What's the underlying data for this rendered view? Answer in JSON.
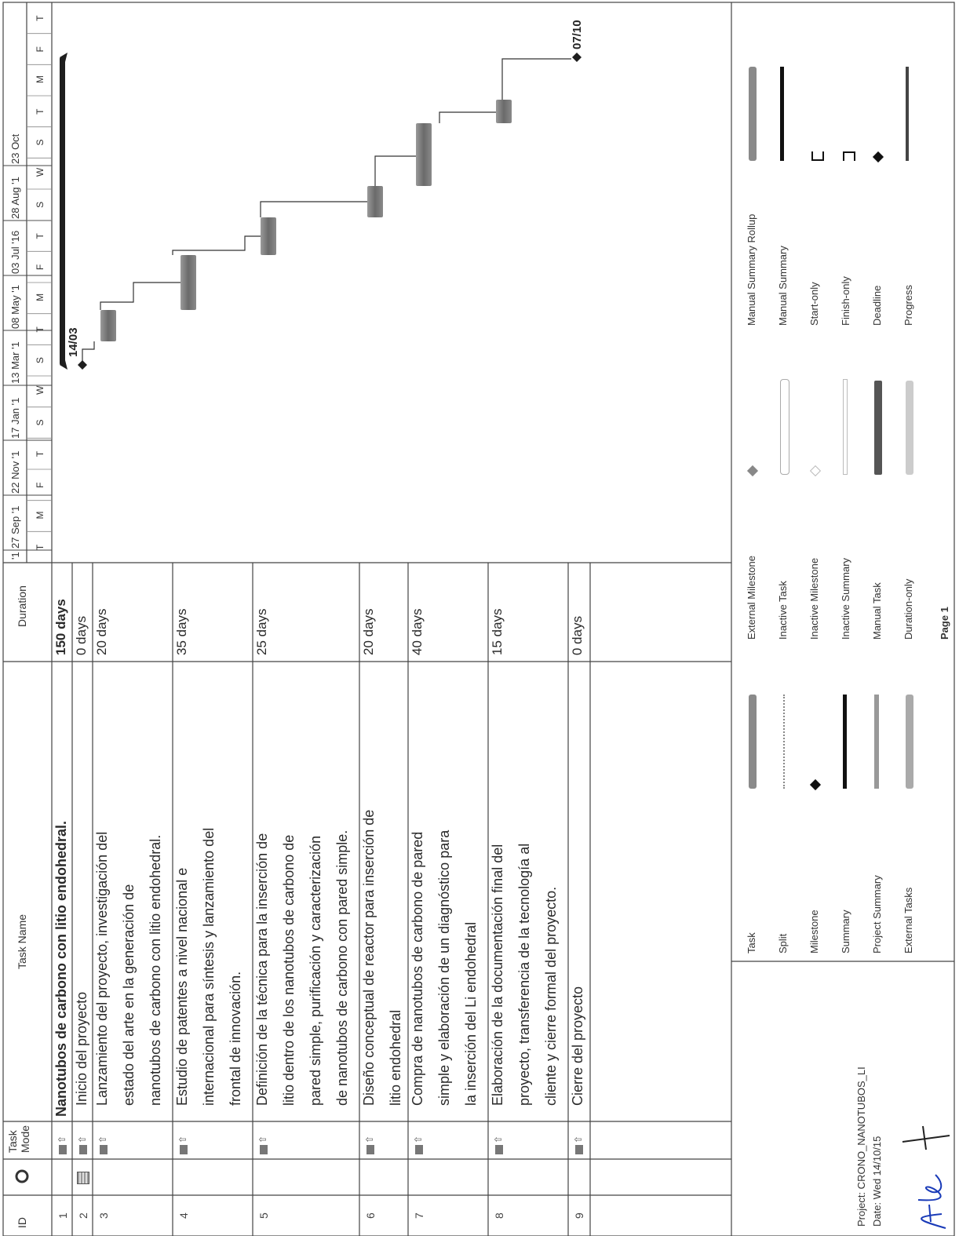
{
  "columns": {
    "id": "ID",
    "indicator": "",
    "mode_line1": "Task",
    "mode_line2": "Mode",
    "name": "Task Name",
    "duration": "Duration"
  },
  "timescale": {
    "top": [
      "'1",
      "27 Sep '1",
      "22 Nov '1",
      "17 Jan '1",
      "13 Mar '1",
      "08 May '1",
      "03 Jul '16",
      "28 Aug '1",
      "23 Oct"
    ],
    "bottom": [
      "T",
      "M",
      "F",
      "T",
      "S",
      "W",
      "S",
      "T",
      "M",
      "F",
      "T",
      "S",
      "W",
      "S",
      "T",
      "M",
      "F",
      "T"
    ]
  },
  "tasks": [
    {
      "id": "1",
      "name_lines": [
        "Nanotubos de carbono con litio endohedral."
      ],
      "duration": "150 days",
      "summary": true
    },
    {
      "id": "2",
      "name_lines": [
        "Inicio del proyecto"
      ],
      "duration": "0 days",
      "milestone_label": "14/03"
    },
    {
      "id": "3",
      "name_lines": [
        "Lanzamiento del proyecto, investigación del",
        "estado del arte en la generación de",
        "nanotubos de carbono con litio endohedral."
      ],
      "duration": "20 days"
    },
    {
      "id": "4",
      "name_lines": [
        "Estudio de patentes a nivel nacional e",
        "internacional para síntesis y lanzamiento del",
        "frontal de innovación."
      ],
      "duration": "35 days"
    },
    {
      "id": "5",
      "name_lines": [
        "Definición de la técnica para la inserción de",
        "litio dentro de los nanotubos de carbono de",
        "pared simple, purificación y caracterización",
        "de nanotubos de carbono con pared simple."
      ],
      "duration": "25 days"
    },
    {
      "id": "6",
      "name_lines": [
        "Diseño conceptual de reactor para inserción de",
        "litio endohedral"
      ],
      "duration": "20 days"
    },
    {
      "id": "7",
      "name_lines": [
        "Compra de nanotubos de carbono de pared",
        "simple y elaboración de un diagnóstico para",
        "la inserción del Li endohedral"
      ],
      "duration": "40 days"
    },
    {
      "id": "8",
      "name_lines": [
        "Elaboración de la documentación final del",
        "proyecto, transferencia de la tecnología al",
        "cliente y cierre formal del proyecto."
      ],
      "duration": "15 days"
    },
    {
      "id": "9",
      "name_lines": [
        "Cierre del proyecto"
      ],
      "duration": "0 days",
      "milestone_label": "07/10"
    }
  ],
  "footer": {
    "project": "Project: CRONO_NANOTUBOS_LI",
    "date": "Date: Wed 14/10/15",
    "page": "Page 1"
  },
  "legend": [
    [
      "Task",
      "Split",
      "Milestone",
      "Summary",
      "Project Summary",
      "External Tasks"
    ],
    [
      "External Milestone",
      "Inactive Task",
      "Inactive Milestone",
      "Inactive Summary",
      "Manual Task",
      "Duration-only"
    ],
    [
      "Manual Summary Rollup",
      "Manual Summary",
      "Start-only",
      "Finish-only",
      "Deadline",
      "Progress"
    ]
  ],
  "colors": {
    "bar": "#7a7a7a",
    "summary": "#1e1e1e",
    "grid": "#444444"
  }
}
